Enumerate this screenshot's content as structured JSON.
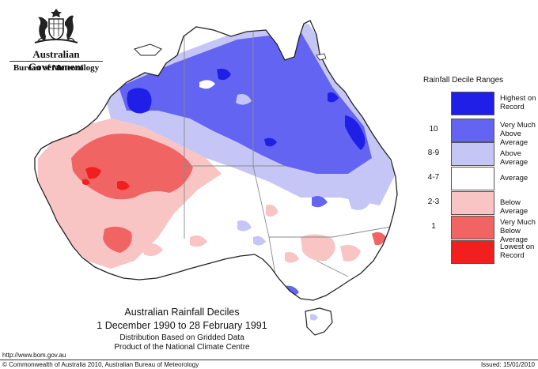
{
  "header": {
    "government": "Australian Government",
    "agency": "Bureau of Meteorology",
    "crest_icon": "coat-of-arms-icon"
  },
  "legend": {
    "title": "Rainfall Decile Ranges",
    "ranges": [
      {
        "value": "",
        "label": "Highest on Record",
        "color": "#1f1fe8"
      },
      {
        "value": "10",
        "label": "Very Much Above Average",
        "color": "#6464f2"
      },
      {
        "value": "8-9",
        "label": "Above Average",
        "color": "#c6c6f6"
      },
      {
        "value": "4-7",
        "label": "Average",
        "color": "#ffffff"
      },
      {
        "value": "2-3",
        "label": "Below Average",
        "color": "#f8c4c4"
      },
      {
        "value": "1",
        "label": "Very Much Below Average",
        "color": "#f06464"
      },
      {
        "value": "",
        "label": "Lowest on Record",
        "color": "#f21f1f"
      }
    ]
  },
  "map": {
    "title": "Australian Rainfall Deciles",
    "period": "1 December 1990 to 28 February 1991",
    "note_1": "Distribution Based on Gridded Data",
    "note_2": "Product of the National Climate Centre"
  },
  "footer": {
    "url": "http://www.bom.gov.au",
    "copyright": "© Commonwealth of Australia 2010, Australian Bureau of Meteorology",
    "issued": "Issued: 15/01/2010"
  }
}
